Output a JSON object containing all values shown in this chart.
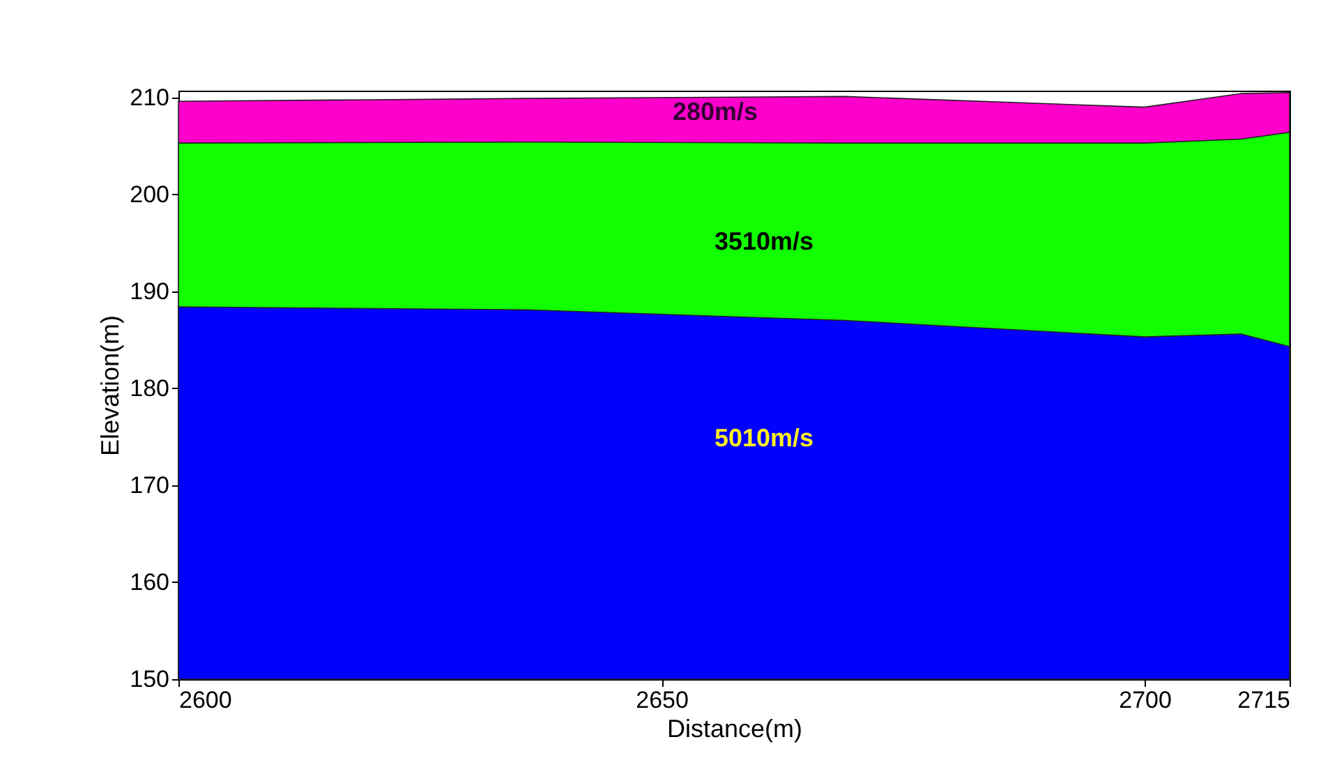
{
  "chart_data": {
    "type": "area",
    "xlabel": "Distance(m)",
    "ylabel": "Elevation(m)",
    "x": [
      2600,
      2636,
      2669,
      2700,
      2710,
      2715
    ],
    "series": [
      {
        "color": "#ff00cc",
        "values": [
          209.6,
          209.9,
          210.1,
          209.0,
          210.4,
          210.5
        ]
      },
      {
        "color": "#11ff00",
        "values": [
          205.3,
          205.4,
          205.3,
          205.3,
          205.7,
          206.4
        ]
      },
      {
        "color": "#0000ff",
        "values": [
          188.4,
          188.1,
          187.0,
          185.3,
          185.6,
          184.3
        ]
      }
    ],
    "annotations": [
      "280m/s",
      "3510m/s",
      "5010m/s"
    ],
    "xlim": [
      2600,
      2715
    ],
    "xticks": [
      2600,
      2650,
      2700,
      2715
    ],
    "ylim": [
      150,
      210.7
    ],
    "yticks": [
      150,
      160,
      170,
      180,
      190,
      200,
      210
    ],
    "grid": false
  }
}
